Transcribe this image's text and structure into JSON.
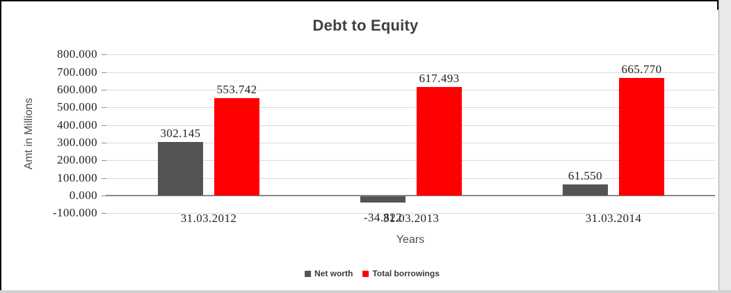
{
  "chart_data": {
    "type": "bar",
    "title": "Debt to Equity",
    "xlabel": "Years",
    "ylabel": "Amt in Millions",
    "categories": [
      "31.03.2012",
      "31.03.2013",
      "31.03.2014"
    ],
    "series": [
      {
        "name": "Net worth",
        "color": "#545457",
        "values": [
          302.145,
          -34.822,
          61.55
        ],
        "labels": [
          "302.145",
          "-34.822",
          "61.550"
        ]
      },
      {
        "name": "Total borrowings",
        "color": "#FF0000",
        "values": [
          553.742,
          617.493,
          665.77
        ],
        "labels": [
          "553.742",
          "617.493",
          "665.770"
        ]
      }
    ],
    "y_ticks": [
      "800.000",
      "700.000",
      "600.000",
      "500.000",
      "400.000",
      "300.000",
      "200.000",
      "100.000",
      "0.000",
      "-100.000"
    ],
    "y_tick_values": [
      800,
      700,
      600,
      500,
      400,
      300,
      200,
      100,
      0,
      -100
    ],
    "ylim": [
      -100,
      800
    ],
    "grid": true,
    "legend_position": "bottom"
  }
}
